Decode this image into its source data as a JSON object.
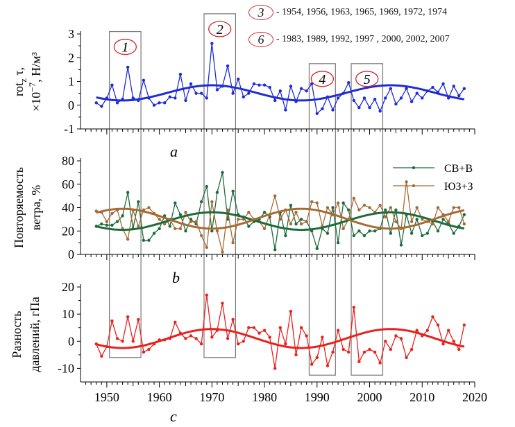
{
  "chart_data": [
    {
      "type": "line",
      "panel_label": "a",
      "ylabel": "rot_z τ, ×10⁻⁷, Н/м³",
      "ylabel_lines": [
        "rot",
        "τ,",
        "z",
        "×10",
        "−7",
        ", Н/м³"
      ],
      "ylim": [
        -1,
        3
      ],
      "yticks": [
        -1,
        0,
        1,
        2,
        3
      ],
      "xlim": [
        1945,
        2020
      ],
      "x": [
        1948,
        1949,
        1950,
        1951,
        1952,
        1953,
        1954,
        1955,
        1956,
        1957,
        1958,
        1959,
        1960,
        1961,
        1962,
        1963,
        1964,
        1965,
        1966,
        1967,
        1968,
        1969,
        1970,
        1971,
        1972,
        1973,
        1974,
        1975,
        1976,
        1977,
        1978,
        1979,
        1980,
        1981,
        1982,
        1983,
        1984,
        1985,
        1986,
        1987,
        1988,
        1989,
        1990,
        1991,
        1992,
        1993,
        1994,
        1995,
        1996,
        1997,
        1998,
        1999,
        2000,
        2001,
        2002,
        2003,
        2004,
        2005,
        2006,
        2007,
        2008,
        2009,
        2010,
        2011,
        2012,
        2013,
        2014,
        2015,
        2016,
        2017,
        2018
      ],
      "series": [
        {
          "color": "#1f2bd6",
          "values": [
            0.1,
            -0.05,
            0.3,
            0.85,
            0.1,
            0.25,
            1.6,
            0.3,
            0.2,
            1.05,
            0.3,
            0.0,
            0.1,
            0.1,
            0.35,
            0.3,
            1.3,
            0.2,
            0.9,
            0.5,
            0.5,
            0.3,
            2.6,
            0.65,
            0.8,
            1.65,
            0.5,
            1.1,
            0.35,
            0.5,
            0.9,
            0.85,
            0.85,
            0.75,
            0.2,
            0.6,
            -0.2,
            0.8,
            0.15,
            0.7,
            0.6,
            0.9,
            -0.35,
            -0.15,
            0.35,
            -0.2,
            0.3,
            0.5,
            0.95,
            0.2,
            -0.1,
            0.3,
            -0.1,
            0.25,
            -0.25,
            0.3,
            0.7,
            0.05,
            0.3,
            0.7,
            0.15,
            0.5,
            0.3,
            0.6,
            0.75,
            0.55,
            0.9,
            0.3,
            0.8,
            0.4,
            0.7
          ]
        }
      ],
      "trend_color": "#1f2bd6",
      "trend": {
        "mean": 0.52,
        "amp": 0.32,
        "period": 34,
        "peak": 1970
      },
      "boxes": [
        {
          "label": "1",
          "x0": 1950.5,
          "x1": 1956.5,
          "y0": -0.2,
          "y1": 3.1
        },
        {
          "label": "2",
          "x0": 1968.5,
          "x1": 1974.5,
          "y0": 0.4,
          "y1": 3.85
        },
        {
          "label": "4",
          "x0": 1988.5,
          "x1": 1993.5,
          "y0": -0.7,
          "y1": 1.75
        },
        {
          "label": "5",
          "x0": 1996.5,
          "x1": 2002.5,
          "y0": -0.5,
          "y1": 1.75
        }
      ],
      "annotations": [
        {
          "circle": "3",
          "text": "- 1954, 1956, 1963, 1965, 1969, 1972, 1974"
        },
        {
          "circle": "6",
          "text": "- 1983, 1989, 1992, 1997 , 2000, 2002, 2007"
        }
      ]
    },
    {
      "type": "line",
      "panel_label": "b",
      "ylabel": "Повторяемость ветра, %",
      "ylabel_lines": [
        "Повторяемость",
        "ветра, %"
      ],
      "ylim": [
        0,
        80
      ],
      "yticks": [
        0,
        20,
        40,
        60,
        80
      ],
      "xlim": [
        1945,
        2020
      ],
      "x": [
        1948,
        1949,
        1950,
        1951,
        1952,
        1953,
        1954,
        1955,
        1956,
        1957,
        1958,
        1959,
        1960,
        1961,
        1962,
        1963,
        1964,
        1965,
        1966,
        1967,
        1968,
        1969,
        1970,
        1971,
        1972,
        1973,
        1974,
        1975,
        1976,
        1977,
        1978,
        1979,
        1980,
        1981,
        1982,
        1983,
        1984,
        1985,
        1986,
        1987,
        1988,
        1989,
        1990,
        1991,
        1992,
        1993,
        1994,
        1995,
        1996,
        1997,
        1998,
        1999,
        2000,
        2001,
        2002,
        2003,
        2004,
        2005,
        2006,
        2007,
        2008,
        2009,
        2010,
        2011,
        2012,
        2013,
        2014,
        2015,
        2016,
        2017,
        2018
      ],
      "legend_position": "top-right",
      "series": [
        {
          "name": "СВ+В",
          "color": "#1d6b3a",
          "values": [
            24,
            26,
            25,
            25,
            28,
            33,
            53,
            22,
            45,
            12,
            12,
            18,
            22,
            33,
            24,
            44,
            34,
            20,
            30,
            26,
            45,
            58,
            20,
            53,
            70,
            30,
            54,
            34,
            32,
            24,
            28,
            30,
            36,
            32,
            4,
            36,
            16,
            42,
            26,
            30,
            28,
            20,
            5,
            22,
            18,
            40,
            10,
            44,
            38,
            16,
            20,
            16,
            20,
            20,
            22,
            38,
            18,
            38,
            8,
            34,
            18,
            30,
            16,
            18,
            28,
            20,
            30,
            26,
            18,
            24,
            34
          ]
        },
        {
          "name": "ЮЗ+З",
          "color": "#a66a34",
          "values": [
            37,
            36,
            28,
            35,
            38,
            22,
            13,
            38,
            24,
            38,
            40,
            35,
            30,
            26,
            30,
            22,
            22,
            36,
            28,
            28,
            16,
            6,
            45,
            20,
            2,
            38,
            10,
            30,
            30,
            36,
            30,
            28,
            22,
            34,
            50,
            30,
            38,
            26,
            36,
            26,
            28,
            45,
            44,
            24,
            40,
            34,
            44,
            22,
            30,
            48,
            38,
            42,
            40,
            36,
            42,
            32,
            40,
            28,
            22,
            62,
            28,
            40,
            30,
            28,
            26,
            40,
            34,
            28,
            40,
            40,
            26
          ]
        }
      ],
      "trends": [
        {
          "color": "#1d6b3a",
          "mean": 28.5,
          "amp": 7.5,
          "period": 34,
          "peak": 1970
        },
        {
          "color": "#a66a34",
          "mean": 30.5,
          "amp": 8.5,
          "period": 34,
          "peak": 1953
        }
      ],
      "boxes": [
        {
          "x0": 1950.5,
          "x1": 1956.5
        },
        {
          "x0": 1968.5,
          "x1": 1974.5
        },
        {
          "x0": 1988.5,
          "x1": 1993.5
        },
        {
          "x0": 1996.5,
          "x1": 2002.5
        }
      ]
    },
    {
      "type": "line",
      "panel_label": "c",
      "ylabel": "Разность давлений, гПа",
      "ylabel_lines": [
        "Разность",
        "давлений, гПа"
      ],
      "ylim": [
        -15,
        20
      ],
      "yticks": [
        -10,
        0,
        10,
        20
      ],
      "xlim": [
        1945,
        2020
      ],
      "xticks": [
        1950,
        1960,
        1970,
        1980,
        1990,
        2000,
        2010,
        2020
      ],
      "x": [
        1948,
        1949,
        1950,
        1951,
        1952,
        1953,
        1954,
        1955,
        1956,
        1957,
        1958,
        1959,
        1960,
        1961,
        1962,
        1963,
        1964,
        1965,
        1966,
        1967,
        1968,
        1969,
        1970,
        1971,
        1972,
        1973,
        1974,
        1975,
        1976,
        1977,
        1978,
        1979,
        1980,
        1981,
        1982,
        1983,
        1984,
        1985,
        1986,
        1987,
        1988,
        1989,
        1990,
        1991,
        1992,
        1993,
        1994,
        1995,
        1996,
        1997,
        1998,
        1999,
        2000,
        2001,
        2002,
        2003,
        2004,
        2005,
        2006,
        2007,
        2008,
        2009,
        2010,
        2011,
        2012,
        2013,
        2014,
        2015,
        2016,
        2017,
        2018
      ],
      "series": [
        {
          "color": "#e8211c",
          "values": [
            -1,
            -5.5,
            -2,
            7.5,
            1,
            0,
            9,
            0,
            8,
            -4,
            -3,
            -1,
            0.5,
            0.5,
            1,
            7,
            3,
            1,
            2,
            1,
            -1,
            17,
            1.5,
            4,
            14,
            1,
            8,
            -1,
            0,
            5,
            5,
            3,
            4,
            1.5,
            -10,
            5,
            -1,
            11,
            -5,
            5,
            2,
            -8.5,
            -6,
            1.5,
            -9,
            -4,
            4,
            -3,
            -4,
            12.5,
            -7.5,
            -4,
            -3,
            -4,
            -8,
            0,
            -3,
            2,
            1,
            -6,
            -3,
            4,
            2,
            4,
            9,
            6,
            -1,
            4,
            0,
            -3,
            6
          ]
        }
      ],
      "trend_color": "#e8211c",
      "trend": {
        "mean": 1.0,
        "amp": 3.5,
        "period": 34,
        "peak": 1970
      },
      "boxes": [
        {
          "x0": 1950.5,
          "x1": 1956.5,
          "y0": -6,
          "y1": 20
        },
        {
          "x0": 1968.5,
          "x1": 1974.5,
          "y0": -6,
          "y1": 20
        },
        {
          "x0": 1988.5,
          "x1": 1993.5,
          "y0": -12.5,
          "y1": 20
        },
        {
          "x0": 1996.5,
          "x1": 2002.5,
          "y0": -12.5,
          "y1": 20
        }
      ]
    }
  ],
  "legend": [
    {
      "name": "СВ+В",
      "color": "#1d6b3a"
    },
    {
      "name": "ЮЗ+З",
      "color": "#a66a34"
    }
  ],
  "box_labels": [
    "1",
    "2",
    "4",
    "5"
  ],
  "panel_labels": [
    "a",
    "b",
    "c"
  ],
  "circle_color": "#d8232a",
  "box_color": "#777777"
}
